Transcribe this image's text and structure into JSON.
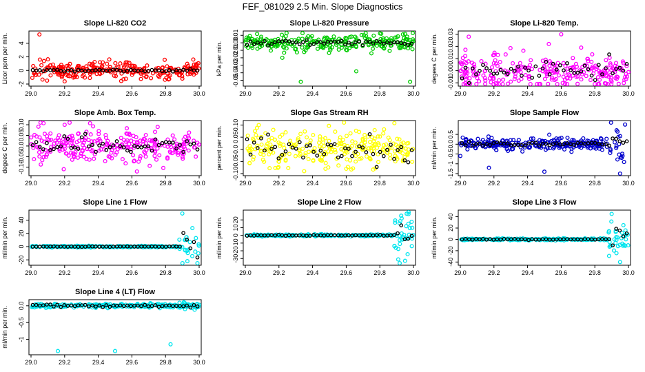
{
  "figure": {
    "title": "FEF_081029  2.5 Min. Slope Diagnostics"
  },
  "chart_data": [
    {
      "type": "scatter",
      "title": "Slope Li-820 CO2",
      "ylabel": "Licor ppm per min.",
      "color": "#ff0000",
      "xlim": [
        29.0,
        30.0
      ],
      "ylim": [
        -2,
        5.5
      ],
      "xticks": [
        "29.0",
        "29.2",
        "29.4",
        "29.6",
        "29.8",
        "30.0"
      ],
      "yticks": [
        -2,
        0,
        2,
        4
      ],
      "noise": 0.6,
      "extremes": [
        [
          29.05,
          5.3
        ],
        [
          29.2,
          -1.6
        ],
        [
          29.55,
          -1.3
        ],
        [
          29.9,
          -1.2
        ],
        [
          29.98,
          0.8
        ],
        [
          29.35,
          -1.1
        ]
      ],
      "black_noise": 0.1,
      "tail_spread": 0.0
    },
    {
      "type": "scatter",
      "title": "Slope Li-820 Pressure",
      "ylabel": "kPa per min.",
      "color": "#00cc00",
      "xlim": [
        29.0,
        30.0
      ],
      "ylim": [
        -0.055,
        0.013
      ],
      "xticks": [
        "29.0",
        "29.2",
        "29.4",
        "29.6",
        "29.8",
        "30.0"
      ],
      "yticks": [
        -0.05,
        -0.04,
        -0.03,
        -0.02,
        -0.01,
        0.0,
        0.01
      ],
      "noise": 0.005,
      "extremes": [
        [
          29.33,
          -0.052
        ],
        [
          29.66,
          -0.038
        ],
        [
          29.98,
          -0.052
        ],
        [
          29.22,
          -0.02
        ],
        [
          29.75,
          -0.014
        ],
        [
          29.95,
          0.012
        ]
      ],
      "black_noise": 0.002,
      "tail_spread": 0.0
    },
    {
      "type": "scatter",
      "title": "Slope Li-820 Temp.",
      "ylabel": "degees C per min.",
      "color": "#ff00ff",
      "xlim": [
        29.0,
        30.0
      ],
      "ylim": [
        -0.011,
        0.031
      ],
      "xticks": [
        "29.0",
        "29.2",
        "29.4",
        "29.6",
        "29.8",
        "30.0"
      ],
      "yticks": [
        -0.01,
        0.0,
        0.01,
        0.02,
        0.03
      ],
      "noise": 0.007,
      "extremes": [
        [
          29.05,
          0.028
        ],
        [
          29.6,
          0.03
        ],
        [
          29.3,
          -0.009
        ],
        [
          29.9,
          -0.009
        ]
      ],
      "black_noise": 0.004,
      "tail_spread": 0.0
    },
    {
      "type": "scatter",
      "title": "Slope Amb. Box Temp.",
      "ylabel": "degees C per min.",
      "color": "#ff00ff",
      "xlim": [
        29.0,
        30.0
      ],
      "ylim": [
        -0.13,
        0.11
      ],
      "xticks": [
        "29.0",
        "29.2",
        "29.4",
        "29.6",
        "29.8",
        "30.0"
      ],
      "yticks": [
        -0.1,
        -0.05,
        0.0,
        0.05,
        0.1
      ],
      "noise": 0.04,
      "extremes": [
        [
          29.2,
          0.1
        ],
        [
          29.63,
          -0.12
        ],
        [
          29.98,
          -0.05
        ]
      ],
      "black_noise": 0.02,
      "tail_spread": 0.0
    },
    {
      "type": "scatter",
      "title": "Slope Gas Stream RH",
      "ylabel": "percent per min.",
      "color": "#ffff00",
      "xlim": [
        29.0,
        30.0
      ],
      "ylim": [
        -0.1,
        0.11
      ],
      "xticks": [
        "29.0",
        "29.2",
        "29.4",
        "29.6",
        "29.8",
        "30.0"
      ],
      "yticks": [
        -0.1,
        -0.05,
        0.0,
        0.05,
        0.1
      ],
      "noise": 0.035,
      "extremes": [
        [
          29.08,
          0.1
        ],
        [
          29.35,
          -0.09
        ],
        [
          29.6,
          -0.08
        ]
      ],
      "black_noise": 0.025,
      "tail_spread": 0.0
    },
    {
      "type": "scatter",
      "title": "Slope Sample Flow",
      "ylabel": "ml/min per min.",
      "color": "#0000cc",
      "xlim": [
        29.0,
        30.0
      ],
      "ylim": [
        -1.5,
        1.1
      ],
      "xticks": [
        "29.0",
        "29.2",
        "29.4",
        "29.6",
        "29.8",
        "30.0"
      ],
      "yticks": [
        -1.5,
        -1.0,
        -0.5,
        0.0,
        0.5
      ],
      "noise": 0.15,
      "extremes": [
        [
          29.17,
          -1.2
        ],
        [
          29.5,
          -1.4
        ],
        [
          29.95,
          -1.5
        ],
        [
          29.98,
          1.0
        ],
        [
          29.0,
          -0.6
        ]
      ],
      "black_noise": 0.05,
      "tail_spread": 0.6
    },
    {
      "type": "scatter",
      "title": "Slope Line 1 Flow",
      "ylabel": "ml/min per min.",
      "color": "#00e5ee",
      "xlim": [
        29.0,
        30.0
      ],
      "ylim": [
        -25,
        52
      ],
      "xticks": [
        "29.0",
        "29.2",
        "29.4",
        "29.6",
        "29.8",
        "30.0"
      ],
      "yticks": [
        -20,
        0,
        20,
        40
      ],
      "noise": 0.6,
      "extremes": [
        [
          29.9,
          50
        ],
        [
          29.93,
          -22
        ],
        [
          29.96,
          28
        ]
      ],
      "black_noise": 0.2,
      "tail_spread": 15
    },
    {
      "type": "scatter",
      "title": "Slope Line 2 Flow",
      "ylabel": "ml/min per min.",
      "color": "#00e5ee",
      "xlim": [
        29.0,
        30.0
      ],
      "ylim": [
        -36,
        30
      ],
      "xticks": [
        "29.0",
        "29.2",
        "29.4",
        "29.6",
        "29.8",
        "30.0"
      ],
      "yticks": [
        -30,
        -20,
        -10,
        0,
        10,
        20
      ],
      "noise": 0.6,
      "extremes": [
        [
          29.96,
          28
        ],
        [
          29.95,
          -33
        ],
        [
          29.93,
          22
        ]
      ],
      "black_noise": 0.3,
      "tail_spread": 14
    },
    {
      "type": "scatter",
      "title": "Slope Line 3 Flow",
      "ylabel": "ml/min per min.",
      "color": "#00e5ee",
      "xlim": [
        29.0,
        30.0
      ],
      "ylim": [
        -42,
        48
      ],
      "xticks": [
        "29.0",
        "29.2",
        "29.4",
        "29.6",
        "29.8",
        "30.0"
      ],
      "yticks": [
        -40,
        -20,
        0,
        20,
        40
      ],
      "noise": 0.8,
      "extremes": [
        [
          29.9,
          45
        ],
        [
          29.95,
          -40
        ],
        [
          29.97,
          25
        ]
      ],
      "black_noise": 0.4,
      "tail_spread": 16
    },
    {
      "type": "scatter",
      "title": "Slope Line 4 (LT) Flow",
      "ylabel": "ml/min per min.",
      "color": "#00e5ee",
      "xlim": [
        29.0,
        30.0
      ],
      "ylim": [
        -1.4,
        0.12
      ],
      "xticks": [
        "29.0",
        "29.2",
        "29.4",
        "29.6",
        "29.8",
        "30.0"
      ],
      "yticks": [
        -1.0,
        -0.5,
        0.0
      ],
      "noise": 0.03,
      "extremes": [
        [
          29.16,
          -1.35
        ],
        [
          29.5,
          -1.35
        ],
        [
          29.83,
          -1.15
        ]
      ],
      "black_noise": 0.02,
      "tail_spread": 0.04
    }
  ]
}
